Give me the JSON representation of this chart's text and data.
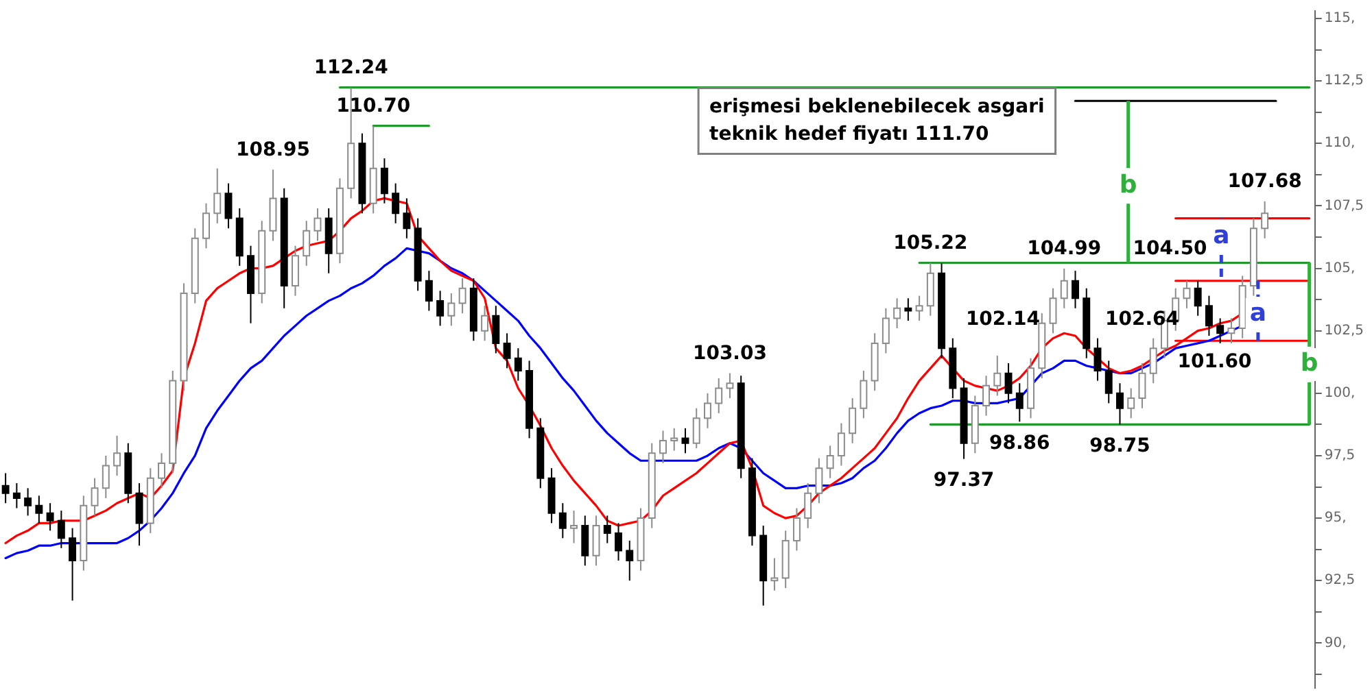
{
  "chart_data": {
    "type": "candlestick",
    "categories": [
      null,
      null,
      null,
      null,
      null,
      null,
      null,
      null,
      null,
      null,
      null,
      null,
      null,
      null,
      null,
      null,
      null,
      null,
      null,
      null,
      null,
      null,
      null,
      null,
      null,
      null,
      null,
      null,
      null,
      null,
      null,
      null,
      null,
      null,
      null,
      null,
      null,
      null,
      null,
      null,
      null,
      null,
      null,
      null,
      null,
      null,
      null,
      null,
      null,
      null,
      null,
      null,
      null,
      null,
      null,
      null,
      null,
      null,
      null,
      null,
      null,
      null,
      null,
      null,
      null,
      null,
      null,
      null,
      null,
      null,
      null,
      null,
      null,
      null,
      null,
      null,
      null,
      null,
      null,
      null,
      null,
      null,
      null,
      null,
      null,
      null,
      null,
      null,
      null,
      null,
      null,
      null,
      null,
      null,
      null,
      null,
      null,
      null,
      null,
      null,
      null,
      null,
      null,
      null,
      null,
      null,
      null,
      null,
      null,
      null,
      null,
      null,
      null,
      null,
      null,
      null,
      null,
      null
    ],
    "ohlc": [
      [
        96.3,
        96.8,
        95.6,
        96.0
      ],
      [
        96.0,
        96.4,
        95.4,
        95.8
      ],
      [
        95.8,
        96.2,
        95.1,
        95.5
      ],
      [
        95.5,
        95.9,
        94.8,
        95.2
      ],
      [
        95.2,
        95.6,
        94.5,
        94.9
      ],
      [
        94.9,
        95.3,
        93.8,
        94.2
      ],
      [
        94.2,
        94.6,
        91.7,
        93.3
      ],
      [
        93.3,
        95.9,
        92.9,
        95.5
      ],
      [
        95.5,
        96.6,
        95.1,
        96.2
      ],
      [
        96.2,
        97.5,
        95.8,
        97.1
      ],
      [
        97.1,
        98.3,
        96.7,
        97.6
      ],
      [
        97.6,
        98.0,
        95.6,
        96.0
      ],
      [
        96.0,
        96.4,
        93.9,
        94.8
      ],
      [
        94.8,
        97.0,
        94.4,
        96.6
      ],
      [
        96.6,
        97.6,
        96.2,
        97.2
      ],
      [
        97.2,
        100.9,
        96.8,
        100.5
      ],
      [
        100.5,
        104.4,
        100.1,
        104.0
      ],
      [
        104.0,
        106.6,
        103.6,
        106.2
      ],
      [
        106.2,
        107.6,
        105.8,
        107.2
      ],
      [
        107.2,
        109.0,
        106.8,
        108.0
      ],
      [
        108.0,
        108.4,
        106.6,
        107.0
      ],
      [
        107.0,
        107.4,
        105.1,
        105.5
      ],
      [
        105.5,
        105.9,
        102.8,
        104.0
      ],
      [
        104.0,
        106.9,
        103.6,
        106.5
      ],
      [
        106.5,
        108.95,
        106.1,
        107.8
      ],
      [
        107.8,
        108.2,
        103.4,
        104.3
      ],
      [
        104.3,
        105.9,
        103.9,
        105.5
      ],
      [
        105.5,
        106.9,
        105.1,
        106.5
      ],
      [
        106.5,
        107.4,
        106.1,
        107.0
      ],
      [
        107.0,
        107.4,
        104.8,
        105.6
      ],
      [
        105.6,
        108.6,
        105.2,
        108.2
      ],
      [
        108.2,
        112.24,
        107.8,
        110.0
      ],
      [
        110.0,
        110.4,
        107.2,
        107.6
      ],
      [
        107.6,
        110.7,
        107.2,
        109.0
      ],
      [
        109.0,
        109.4,
        107.6,
        108.0
      ],
      [
        108.0,
        108.4,
        106.8,
        107.2
      ],
      [
        107.2,
        107.8,
        106.2,
        106.6
      ],
      [
        106.6,
        107.0,
        104.1,
        104.5
      ],
      [
        104.5,
        104.9,
        103.3,
        103.7
      ],
      [
        103.7,
        104.1,
        102.7,
        103.1
      ],
      [
        103.1,
        104.0,
        102.7,
        103.6
      ],
      [
        103.6,
        104.6,
        103.2,
        104.2
      ],
      [
        104.2,
        104.6,
        102.1,
        102.5
      ],
      [
        102.5,
        103.5,
        102.1,
        103.1
      ],
      [
        103.1,
        103.5,
        101.6,
        102.0
      ],
      [
        102.0,
        102.4,
        101.0,
        101.4
      ],
      [
        101.4,
        101.8,
        100.5,
        100.9
      ],
      [
        100.9,
        101.3,
        98.2,
        98.6
      ],
      [
        98.6,
        99.0,
        96.2,
        96.6
      ],
      [
        96.6,
        97.0,
        94.8,
        95.2
      ],
      [
        95.2,
        95.6,
        94.2,
        94.6
      ],
      [
        94.6,
        95.3,
        94.0,
        94.7
      ],
      [
        94.7,
        95.1,
        93.1,
        93.5
      ],
      [
        93.5,
        95.1,
        93.1,
        94.7
      ],
      [
        94.7,
        95.1,
        94.0,
        94.4
      ],
      [
        94.4,
        94.8,
        93.3,
        93.7
      ],
      [
        93.7,
        94.1,
        92.5,
        93.3
      ],
      [
        93.3,
        95.4,
        92.9,
        95.0
      ],
      [
        95.0,
        98.0,
        94.6,
        97.6
      ],
      [
        97.6,
        98.5,
        97.2,
        98.1
      ],
      [
        98.1,
        98.6,
        97.7,
        98.2
      ],
      [
        98.2,
        98.6,
        97.6,
        98.0
      ],
      [
        98.0,
        99.4,
        97.8,
        99.0
      ],
      [
        99.0,
        100.0,
        98.6,
        99.6
      ],
      [
        99.6,
        100.6,
        99.2,
        100.2
      ],
      [
        100.2,
        100.8,
        99.8,
        100.4
      ],
      [
        100.4,
        100.7,
        96.6,
        97.0
      ],
      [
        97.0,
        97.4,
        93.9,
        94.3
      ],
      [
        94.3,
        94.7,
        91.5,
        92.5
      ],
      [
        92.5,
        93.4,
        92.1,
        92.6
      ],
      [
        92.6,
        94.5,
        92.2,
        94.1
      ],
      [
        94.1,
        95.4,
        93.7,
        95.0
      ],
      [
        95.0,
        96.4,
        94.6,
        96.0
      ],
      [
        96.0,
        97.4,
        95.6,
        97.0
      ],
      [
        97.0,
        97.9,
        96.6,
        97.5
      ],
      [
        97.5,
        98.8,
        97.1,
        98.4
      ],
      [
        98.4,
        99.8,
        98.0,
        99.4
      ],
      [
        99.4,
        100.9,
        99.0,
        100.5
      ],
      [
        100.5,
        102.4,
        100.1,
        102.0
      ],
      [
        102.0,
        103.4,
        101.6,
        103.0
      ],
      [
        103.0,
        103.8,
        102.6,
        103.4
      ],
      [
        103.4,
        103.8,
        102.9,
        103.3
      ],
      [
        103.3,
        103.9,
        102.9,
        103.5
      ],
      [
        103.5,
        105.22,
        103.1,
        104.8
      ],
      [
        104.8,
        105.2,
        101.4,
        101.8
      ],
      [
        101.8,
        102.2,
        99.8,
        100.2
      ],
      [
        100.2,
        100.6,
        97.37,
        98.0
      ],
      [
        98.0,
        99.9,
        97.6,
        99.5
      ],
      [
        99.5,
        100.7,
        99.1,
        100.3
      ],
      [
        100.3,
        101.5,
        99.9,
        100.8
      ],
      [
        100.8,
        101.2,
        99.6,
        100.0
      ],
      [
        100.0,
        100.4,
        98.86,
        99.4
      ],
      [
        99.4,
        101.4,
        99.0,
        101.0
      ],
      [
        101.0,
        103.2,
        100.6,
        102.8
      ],
      [
        102.8,
        104.2,
        102.4,
        103.8
      ],
      [
        103.8,
        104.99,
        103.4,
        104.5
      ],
      [
        104.5,
        104.9,
        103.4,
        103.8
      ],
      [
        103.8,
        104.2,
        101.4,
        101.8
      ],
      [
        101.8,
        102.2,
        100.5,
        100.9
      ],
      [
        100.9,
        101.3,
        99.6,
        100.0
      ],
      [
        100.0,
        100.4,
        98.75,
        99.4
      ],
      [
        99.4,
        100.2,
        99.0,
        99.8
      ],
      [
        99.8,
        101.2,
        99.4,
        100.8
      ],
      [
        100.8,
        102.2,
        100.4,
        101.8
      ],
      [
        101.8,
        103.3,
        101.4,
        102.9
      ],
      [
        102.9,
        104.2,
        102.5,
        103.8
      ],
      [
        103.8,
        104.5,
        103.4,
        104.2
      ],
      [
        104.2,
        104.5,
        103.1,
        103.5
      ],
      [
        103.5,
        103.9,
        102.3,
        102.7
      ],
      [
        102.7,
        103.0,
        102.0,
        102.4
      ],
      [
        102.4,
        103.0,
        102.0,
        102.6
      ],
      [
        102.6,
        104.7,
        102.2,
        104.3
      ],
      [
        104.3,
        107.0,
        103.9,
        106.6
      ],
      [
        106.6,
        107.68,
        106.2,
        107.2
      ],
      null,
      null,
      null,
      null
    ],
    "series": [
      {
        "type": "line",
        "color": "#ff0000",
        "values": [
          94.0,
          94.3,
          94.5,
          94.8,
          94.8,
          94.9,
          94.9,
          94.9,
          95.1,
          95.3,
          95.6,
          95.8,
          96.0,
          95.8,
          96.3,
          96.9,
          100.6,
          102.0,
          103.7,
          104.2,
          104.5,
          104.8,
          105.0,
          105.0,
          105.1,
          105.4,
          105.7,
          105.9,
          106.0,
          106.1,
          106.5,
          107.0,
          107.3,
          107.7,
          107.8,
          107.7,
          107.6,
          106.3,
          105.8,
          105.3,
          104.9,
          104.7,
          104.5,
          103.8,
          101.8,
          101.3,
          100.2,
          99.5,
          98.7,
          97.8,
          97.1,
          96.5,
          96.0,
          95.5,
          94.9,
          94.7,
          94.8,
          94.9,
          95.3,
          95.9,
          96.2,
          96.5,
          96.8,
          97.2,
          97.6,
          98.0,
          98.1,
          97.0,
          95.5,
          95.2,
          95.0,
          95.1,
          95.5,
          96.0,
          96.3,
          96.6,
          97.0,
          97.4,
          97.8,
          98.4,
          99.0,
          99.8,
          100.5,
          101.0,
          101.5,
          101.0,
          100.5,
          100.3,
          100.2,
          100.1,
          100.3,
          100.6,
          101.1,
          101.8,
          102.2,
          102.4,
          102.3,
          101.8,
          101.4,
          101.0,
          100.8,
          100.9,
          101.1,
          101.4,
          101.7,
          101.9,
          102.2,
          102.5,
          102.6,
          102.8,
          102.9,
          103.2,
          null,
          null,
          null,
          null,
          null,
          null
        ]
      },
      {
        "type": "line",
        "color": "#0000ff",
        "values": [
          93.4,
          93.6,
          93.7,
          93.9,
          93.9,
          94.0,
          94.0,
          94.0,
          94.0,
          94.0,
          94.0,
          94.2,
          94.5,
          94.9,
          95.4,
          96.0,
          96.8,
          97.5,
          98.6,
          99.3,
          99.9,
          100.5,
          101.0,
          101.3,
          101.8,
          102.3,
          102.7,
          103.1,
          103.4,
          103.7,
          103.9,
          104.2,
          104.4,
          104.7,
          105.1,
          105.4,
          105.8,
          105.7,
          105.6,
          105.3,
          105.0,
          104.8,
          104.5,
          104.1,
          103.7,
          103.3,
          102.9,
          102.3,
          101.8,
          101.2,
          100.6,
          100.1,
          99.5,
          98.9,
          98.4,
          98.0,
          97.6,
          97.3,
          97.3,
          97.3,
          97.3,
          97.3,
          97.3,
          97.5,
          97.8,
          98.0,
          97.8,
          97.3,
          96.8,
          96.5,
          96.2,
          96.2,
          96.3,
          96.3,
          96.3,
          96.4,
          96.6,
          97.0,
          97.3,
          97.8,
          98.4,
          98.9,
          99.2,
          99.4,
          99.5,
          99.7,
          99.7,
          99.6,
          99.6,
          99.6,
          99.7,
          99.8,
          100.3,
          100.8,
          101.0,
          101.3,
          101.3,
          101.1,
          101.0,
          100.9,
          100.8,
          100.8,
          101.0,
          101.2,
          101.5,
          101.8,
          101.9,
          102.0,
          102.1,
          102.3,
          102.5,
          102.7,
          null,
          null,
          null,
          null,
          null,
          null
        ]
      },
      {
        "type": "line",
        "color": "#1f9a2a",
        "values": [
          null,
          null,
          null,
          null,
          null,
          null,
          null,
          null,
          null,
          null,
          null,
          null,
          null,
          null,
          null,
          null,
          null,
          null,
          null,
          null,
          null,
          null,
          null,
          null,
          null,
          null,
          null,
          null,
          null,
          null,
          112.24,
          112.24,
          112.24,
          112.24,
          112.24,
          112.24,
          112.24,
          112.24,
          112.24,
          112.24,
          112.24,
          112.24,
          112.24,
          112.24,
          112.24,
          112.24,
          112.24,
          112.24,
          112.24,
          112.24,
          112.24,
          112.24,
          112.24,
          112.24,
          112.24,
          112.24,
          112.24,
          112.24,
          112.24,
          112.24,
          112.24,
          112.24,
          112.24,
          112.24,
          112.24,
          112.24,
          112.24,
          112.24,
          112.24,
          112.24,
          112.24,
          112.24,
          112.24,
          112.24,
          112.24,
          112.24,
          112.24,
          112.24,
          112.24,
          112.24,
          112.24,
          112.24,
          112.24,
          112.24,
          112.24,
          112.24,
          112.24,
          112.24,
          112.24,
          112.24,
          112.24,
          112.24,
          112.24,
          112.24,
          112.24,
          112.24,
          112.24,
          112.24,
          112.24,
          112.24,
          112.24,
          112.24,
          112.24,
          112.24,
          112.24,
          112.24,
          112.24,
          112.24,
          112.24,
          112.24,
          112.24,
          112.24,
          112.24,
          112.24,
          112.24,
          112.24,
          112.24,
          112.24
        ]
      },
      {
        "type": "line",
        "color": "#1f9a2a",
        "values": [
          null,
          null,
          null,
          null,
          null,
          null,
          null,
          null,
          null,
          null,
          null,
          null,
          null,
          null,
          null,
          null,
          null,
          null,
          null,
          null,
          null,
          null,
          null,
          null,
          null,
          null,
          null,
          null,
          null,
          null,
          null,
          null,
          null,
          110.7,
          110.7,
          110.7,
          110.7,
          110.7,
          110.7,
          null,
          null,
          null,
          null,
          null,
          null,
          null,
          null,
          null,
          null,
          null,
          null,
          null,
          null,
          null,
          null,
          null,
          null,
          null,
          null,
          null,
          null,
          null,
          null,
          null,
          null,
          null,
          null,
          null,
          null,
          null,
          null,
          null,
          null,
          null,
          null,
          null,
          null,
          null,
          null,
          null,
          null,
          null,
          null,
          null,
          null,
          null,
          null,
          null,
          null,
          null,
          null,
          null,
          null,
          null,
          null,
          null,
          null,
          null,
          null,
          null,
          null,
          null,
          null,
          null,
          null,
          null,
          null,
          null,
          null,
          null,
          null,
          null,
          null,
          null,
          null,
          null,
          null,
          null
        ]
      },
      {
        "type": "line",
        "color": "#1f9a2a",
        "values": [
          null,
          null,
          null,
          null,
          null,
          null,
          null,
          null,
          null,
          null,
          null,
          null,
          null,
          null,
          null,
          null,
          null,
          null,
          null,
          null,
          null,
          null,
          null,
          null,
          null,
          null,
          null,
          null,
          null,
          null,
          null,
          null,
          null,
          null,
          null,
          null,
          null,
          null,
          null,
          null,
          null,
          null,
          null,
          null,
          null,
          null,
          null,
          null,
          null,
          null,
          null,
          null,
          null,
          null,
          null,
          null,
          null,
          null,
          null,
          null,
          null,
          null,
          null,
          null,
          null,
          null,
          null,
          null,
          null,
          null,
          null,
          null,
          null,
          null,
          null,
          null,
          null,
          null,
          null,
          null,
          null,
          null,
          105.22,
          105.22,
          105.22,
          105.22,
          105.22,
          105.22,
          105.22,
          105.22,
          105.22,
          105.22,
          105.22,
          105.22,
          105.22,
          105.22,
          105.22,
          105.22,
          105.22,
          105.22,
          105.22,
          105.22,
          105.22,
          105.22,
          105.22,
          105.22,
          105.22,
          105.22,
          105.22,
          105.22,
          105.22,
          105.22,
          105.22,
          105.22,
          105.22,
          105.22,
          105.22,
          105.22
        ]
      },
      {
        "type": "line",
        "color": "#1f9a2a",
        "values": [
          null,
          null,
          null,
          null,
          null,
          null,
          null,
          null,
          null,
          null,
          null,
          null,
          null,
          null,
          null,
          null,
          null,
          null,
          null,
          null,
          null,
          null,
          null,
          null,
          null,
          null,
          null,
          null,
          null,
          null,
          null,
          null,
          null,
          null,
          null,
          null,
          null,
          null,
          null,
          null,
          null,
          null,
          null,
          null,
          null,
          null,
          null,
          null,
          null,
          null,
          null,
          null,
          null,
          null,
          null,
          null,
          null,
          null,
          null,
          null,
          null,
          null,
          null,
          null,
          null,
          null,
          null,
          null,
          null,
          null,
          null,
          null,
          null,
          null,
          null,
          null,
          null,
          null,
          null,
          null,
          null,
          null,
          null,
          98.75,
          98.75,
          98.75,
          98.75,
          98.75,
          98.75,
          98.75,
          98.75,
          98.75,
          98.75,
          98.75,
          98.75,
          98.75,
          98.75,
          98.75,
          98.75,
          98.75,
          98.75,
          98.75,
          98.75,
          98.75,
          98.75,
          98.75,
          98.75,
          98.75,
          98.75,
          98.75,
          98.75,
          98.75,
          98.75,
          98.75,
          98.75,
          98.75,
          98.75,
          98.75
        ]
      },
      {
        "type": "line",
        "color": "#000000",
        "values": [
          null,
          null,
          null,
          null,
          null,
          null,
          null,
          null,
          null,
          null,
          null,
          null,
          null,
          null,
          null,
          null,
          null,
          null,
          null,
          null,
          null,
          null,
          null,
          null,
          null,
          null,
          null,
          null,
          null,
          null,
          null,
          null,
          null,
          null,
          null,
          null,
          null,
          null,
          null,
          null,
          null,
          null,
          null,
          null,
          null,
          null,
          null,
          null,
          null,
          null,
          null,
          null,
          null,
          null,
          null,
          null,
          null,
          null,
          null,
          null,
          null,
          null,
          null,
          null,
          null,
          null,
          null,
          null,
          null,
          null,
          null,
          null,
          null,
          null,
          null,
          null,
          null,
          null,
          null,
          null,
          null,
          null,
          null,
          null,
          null,
          null,
          null,
          null,
          null,
          null,
          null,
          null,
          null,
          null,
          null,
          null,
          111.7,
          111.7,
          111.7,
          111.7,
          111.7,
          111.7,
          111.7,
          111.7,
          111.7,
          111.7,
          111.7,
          111.7,
          111.7,
          111.7,
          111.7,
          111.7,
          111.7,
          111.7,
          111.7,
          null,
          null,
          null
        ]
      },
      {
        "type": "line",
        "color": "#ff0000",
        "values": [
          null,
          null,
          null,
          null,
          null,
          null,
          null,
          null,
          null,
          null,
          null,
          null,
          null,
          null,
          null,
          null,
          null,
          null,
          null,
          null,
          null,
          null,
          null,
          null,
          null,
          null,
          null,
          null,
          null,
          null,
          null,
          null,
          null,
          null,
          null,
          null,
          null,
          null,
          null,
          null,
          null,
          null,
          null,
          null,
          null,
          null,
          null,
          null,
          null,
          null,
          null,
          null,
          null,
          null,
          null,
          null,
          null,
          null,
          null,
          null,
          null,
          null,
          null,
          null,
          null,
          null,
          null,
          null,
          null,
          null,
          null,
          null,
          null,
          null,
          null,
          null,
          null,
          null,
          null,
          null,
          null,
          null,
          null,
          null,
          null,
          null,
          null,
          null,
          null,
          null,
          null,
          null,
          null,
          null,
          null,
          null,
          null,
          null,
          null,
          null,
          null,
          null,
          null,
          null,
          null,
          107.0,
          107.0,
          107.0,
          107.0,
          107.0,
          107.0,
          107.0,
          107.0,
          107.0,
          107.0,
          107.0,
          107.0,
          107.0
        ]
      },
      {
        "type": "line",
        "color": "#ff0000",
        "values": [
          null,
          null,
          null,
          null,
          null,
          null,
          null,
          null,
          null,
          null,
          null,
          null,
          null,
          null,
          null,
          null,
          null,
          null,
          null,
          null,
          null,
          null,
          null,
          null,
          null,
          null,
          null,
          null,
          null,
          null,
          null,
          null,
          null,
          null,
          null,
          null,
          null,
          null,
          null,
          null,
          null,
          null,
          null,
          null,
          null,
          null,
          null,
          null,
          null,
          null,
          null,
          null,
          null,
          null,
          null,
          null,
          null,
          null,
          null,
          null,
          null,
          null,
          null,
          null,
          null,
          null,
          null,
          null,
          null,
          null,
          null,
          null,
          null,
          null,
          null,
          null,
          null,
          null,
          null,
          null,
          null,
          null,
          null,
          null,
          null,
          null,
          null,
          null,
          null,
          null,
          null,
          null,
          null,
          null,
          null,
          null,
          null,
          null,
          null,
          null,
          null,
          null,
          null,
          null,
          null,
          104.5,
          104.5,
          104.5,
          104.5,
          104.5,
          104.5,
          104.5,
          104.5,
          104.5,
          104.5,
          104.5,
          104.5,
          104.5
        ]
      },
      {
        "type": "line",
        "color": "#ff0000",
        "values": [
          null,
          null,
          null,
          null,
          null,
          null,
          null,
          null,
          null,
          null,
          null,
          null,
          null,
          null,
          null,
          null,
          null,
          null,
          null,
          null,
          null,
          null,
          null,
          null,
          null,
          null,
          null,
          null,
          null,
          null,
          null,
          null,
          null,
          null,
          null,
          null,
          null,
          null,
          null,
          null,
          null,
          null,
          null,
          null,
          null,
          null,
          null,
          null,
          null,
          null,
          null,
          null,
          null,
          null,
          null,
          null,
          null,
          null,
          null,
          null,
          null,
          null,
          null,
          null,
          null,
          null,
          null,
          null,
          null,
          null,
          null,
          null,
          null,
          null,
          null,
          null,
          null,
          null,
          null,
          null,
          null,
          null,
          null,
          null,
          null,
          null,
          null,
          null,
          null,
          null,
          null,
          null,
          null,
          null,
          null,
          null,
          null,
          null,
          null,
          null,
          null,
          null,
          null,
          null,
          null,
          102.1,
          102.1,
          102.1,
          102.1,
          102.1,
          102.1,
          102.1,
          102.1,
          102.1,
          102.1,
          102.1,
          102.1,
          102.1
        ]
      }
    ],
    "annotations": [
      {
        "text": "112.24",
        "y": 112.24
      },
      {
        "text": "110.70",
        "y": 110.7
      },
      {
        "text": "108.95",
        "y": 108.95
      },
      {
        "text": "103.03",
        "y": 100.8
      },
      {
        "text": "105.22",
        "y": 105.22
      },
      {
        "text": "97.37",
        "y": 97.37
      },
      {
        "text": "98.86",
        "y": 98.86
      },
      "102.14",
      {
        "text": "104.99",
        "y": 104.99
      },
      {
        "text": "98.75",
        "y": 98.75
      },
      "102.64",
      "104.50",
      {
        "text": "107.68",
        "y": 107.68
      },
      "101.60",
      "erişmesi beklenebilecek asgari\nteknik hedef fiyatı 111.70",
      "b",
      "b",
      "a",
      "a"
    ],
    "ylim": [
      88.2,
      115.3
    ],
    "yticks": [
      {
        "value": 88.75,
        "label": null
      },
      {
        "value": 90,
        "label": "90,"
      },
      {
        "value": 91.25,
        "label": null
      },
      {
        "value": 92.5,
        "label": "92,5"
      },
      {
        "value": 93.75,
        "label": null
      },
      {
        "value": 95,
        "label": "95,"
      },
      {
        "value": 96.25,
        "label": null
      },
      {
        "value": 97.5,
        "label": "97,5"
      },
      {
        "value": 98.75,
        "label": null
      },
      {
        "value": 100,
        "label": "100,"
      },
      {
        "value": 101.25,
        "label": null
      },
      {
        "value": 102.5,
        "label": "102,5"
      },
      {
        "value": 103.75,
        "label": null
      },
      {
        "value": 105,
        "label": "105,"
      },
      {
        "value": 106.25,
        "label": null
      },
      {
        "value": 107.5,
        "label": "107,5"
      },
      {
        "value": 108.75,
        "label": null
      },
      {
        "value": 110,
        "label": "110,"
      },
      {
        "value": 111.25,
        "label": null
      },
      {
        "value": 112.5,
        "label": "112,5"
      },
      {
        "value": 113.75,
        "label": null
      },
      {
        "value": 115,
        "label": "115,"
      }
    ],
    "tick_labels": "y"
  }
}
